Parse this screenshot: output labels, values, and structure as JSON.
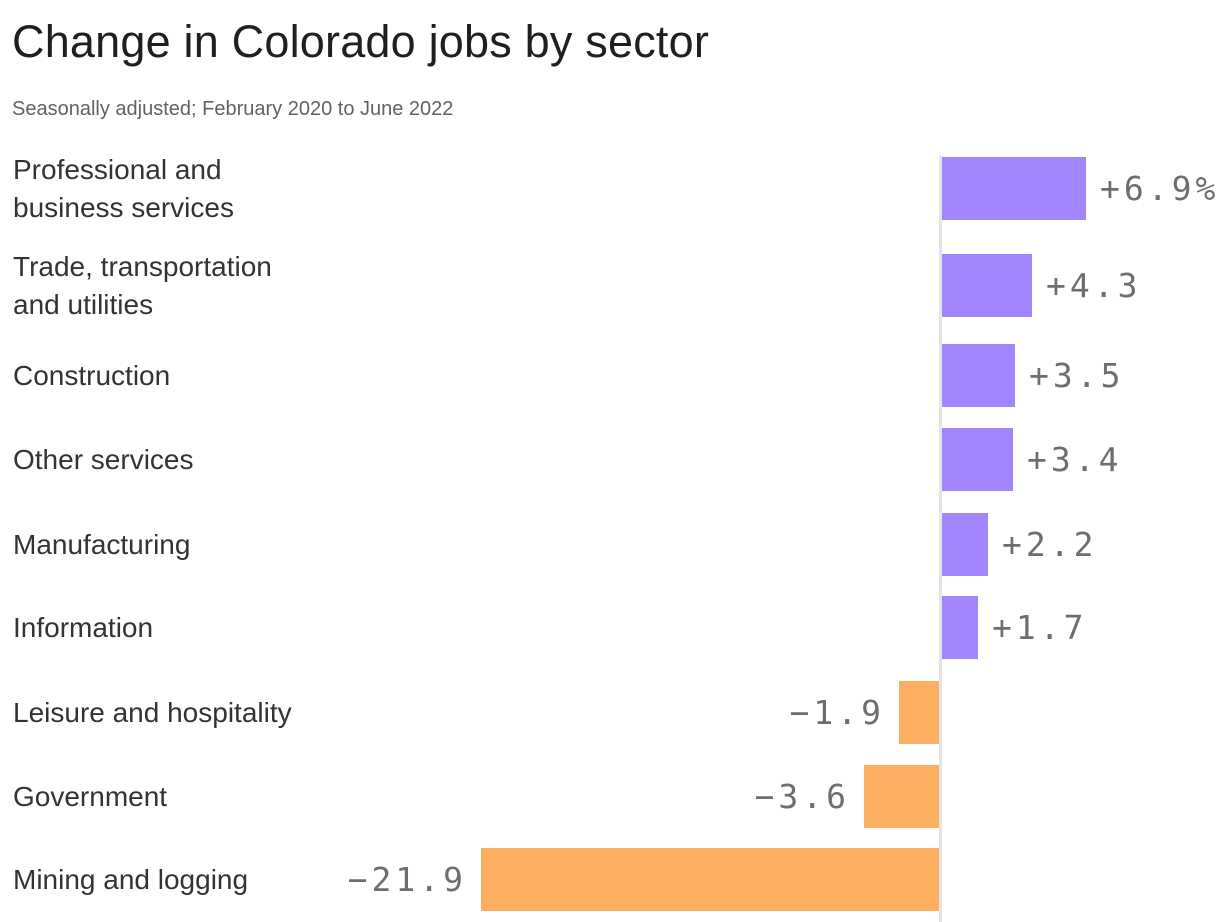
{
  "page": {
    "background": "#ffffff"
  },
  "chart_data": {
    "type": "bar",
    "orientation": "horizontal",
    "title": "Change in Colorado jobs by sector",
    "subtitle": "Seasonally adjusted; February 2020 to June 2022",
    "value_unit": "percent",
    "baseline_value": 0,
    "xlim": [
      -21.9,
      6.9
    ],
    "grid": false,
    "legend": "none",
    "colors": {
      "positive_bar": "#a285fc",
      "negative_bar": "#fdaf61",
      "baseline": "#e4e4e4",
      "title_text": "#1f1f1f",
      "subtitle_text": "#5f6368",
      "category_text": "#333333",
      "value_text": "#6e6e6e"
    },
    "categories": [
      "Professional and business services",
      "Trade, transportation and utilities",
      "Construction",
      "Other services",
      "Manufacturing",
      "Information",
      "Leisure and hospitality",
      "Government",
      "Mining and logging"
    ],
    "values": [
      6.9,
      4.3,
      3.5,
      3.4,
      2.2,
      1.7,
      -1.9,
      -3.6,
      -21.9
    ],
    "rows": [
      {
        "category": "Professional and business services",
        "label_lines": [
          "Professional and",
          "business services"
        ],
        "value": 6.9,
        "value_label": "+6.9%"
      },
      {
        "category": "Trade, transportation and utilities",
        "label_lines": [
          "Trade, transportation",
          "and utilities"
        ],
        "value": 4.3,
        "value_label": "+4.3"
      },
      {
        "category": "Construction",
        "label_lines": [
          "Construction"
        ],
        "value": 3.5,
        "value_label": "+3.5"
      },
      {
        "category": "Other services",
        "label_lines": [
          "Other services"
        ],
        "value": 3.4,
        "value_label": "+3.4"
      },
      {
        "category": "Manufacturing",
        "label_lines": [
          "Manufacturing"
        ],
        "value": 2.2,
        "value_label": "+2.2"
      },
      {
        "category": "Information",
        "label_lines": [
          "Information"
        ],
        "value": 1.7,
        "value_label": "+1.7"
      },
      {
        "category": "Leisure and hospitality",
        "label_lines": [
          "Leisure and hospitality"
        ],
        "value": -1.9,
        "value_label": "−1.9"
      },
      {
        "category": "Government",
        "label_lines": [
          "Government"
        ],
        "value": -3.6,
        "value_label": "−3.6"
      },
      {
        "category": "Mining and logging",
        "label_lines": [
          "Mining and logging"
        ],
        "value": -21.9,
        "value_label": "−21.9"
      }
    ]
  }
}
